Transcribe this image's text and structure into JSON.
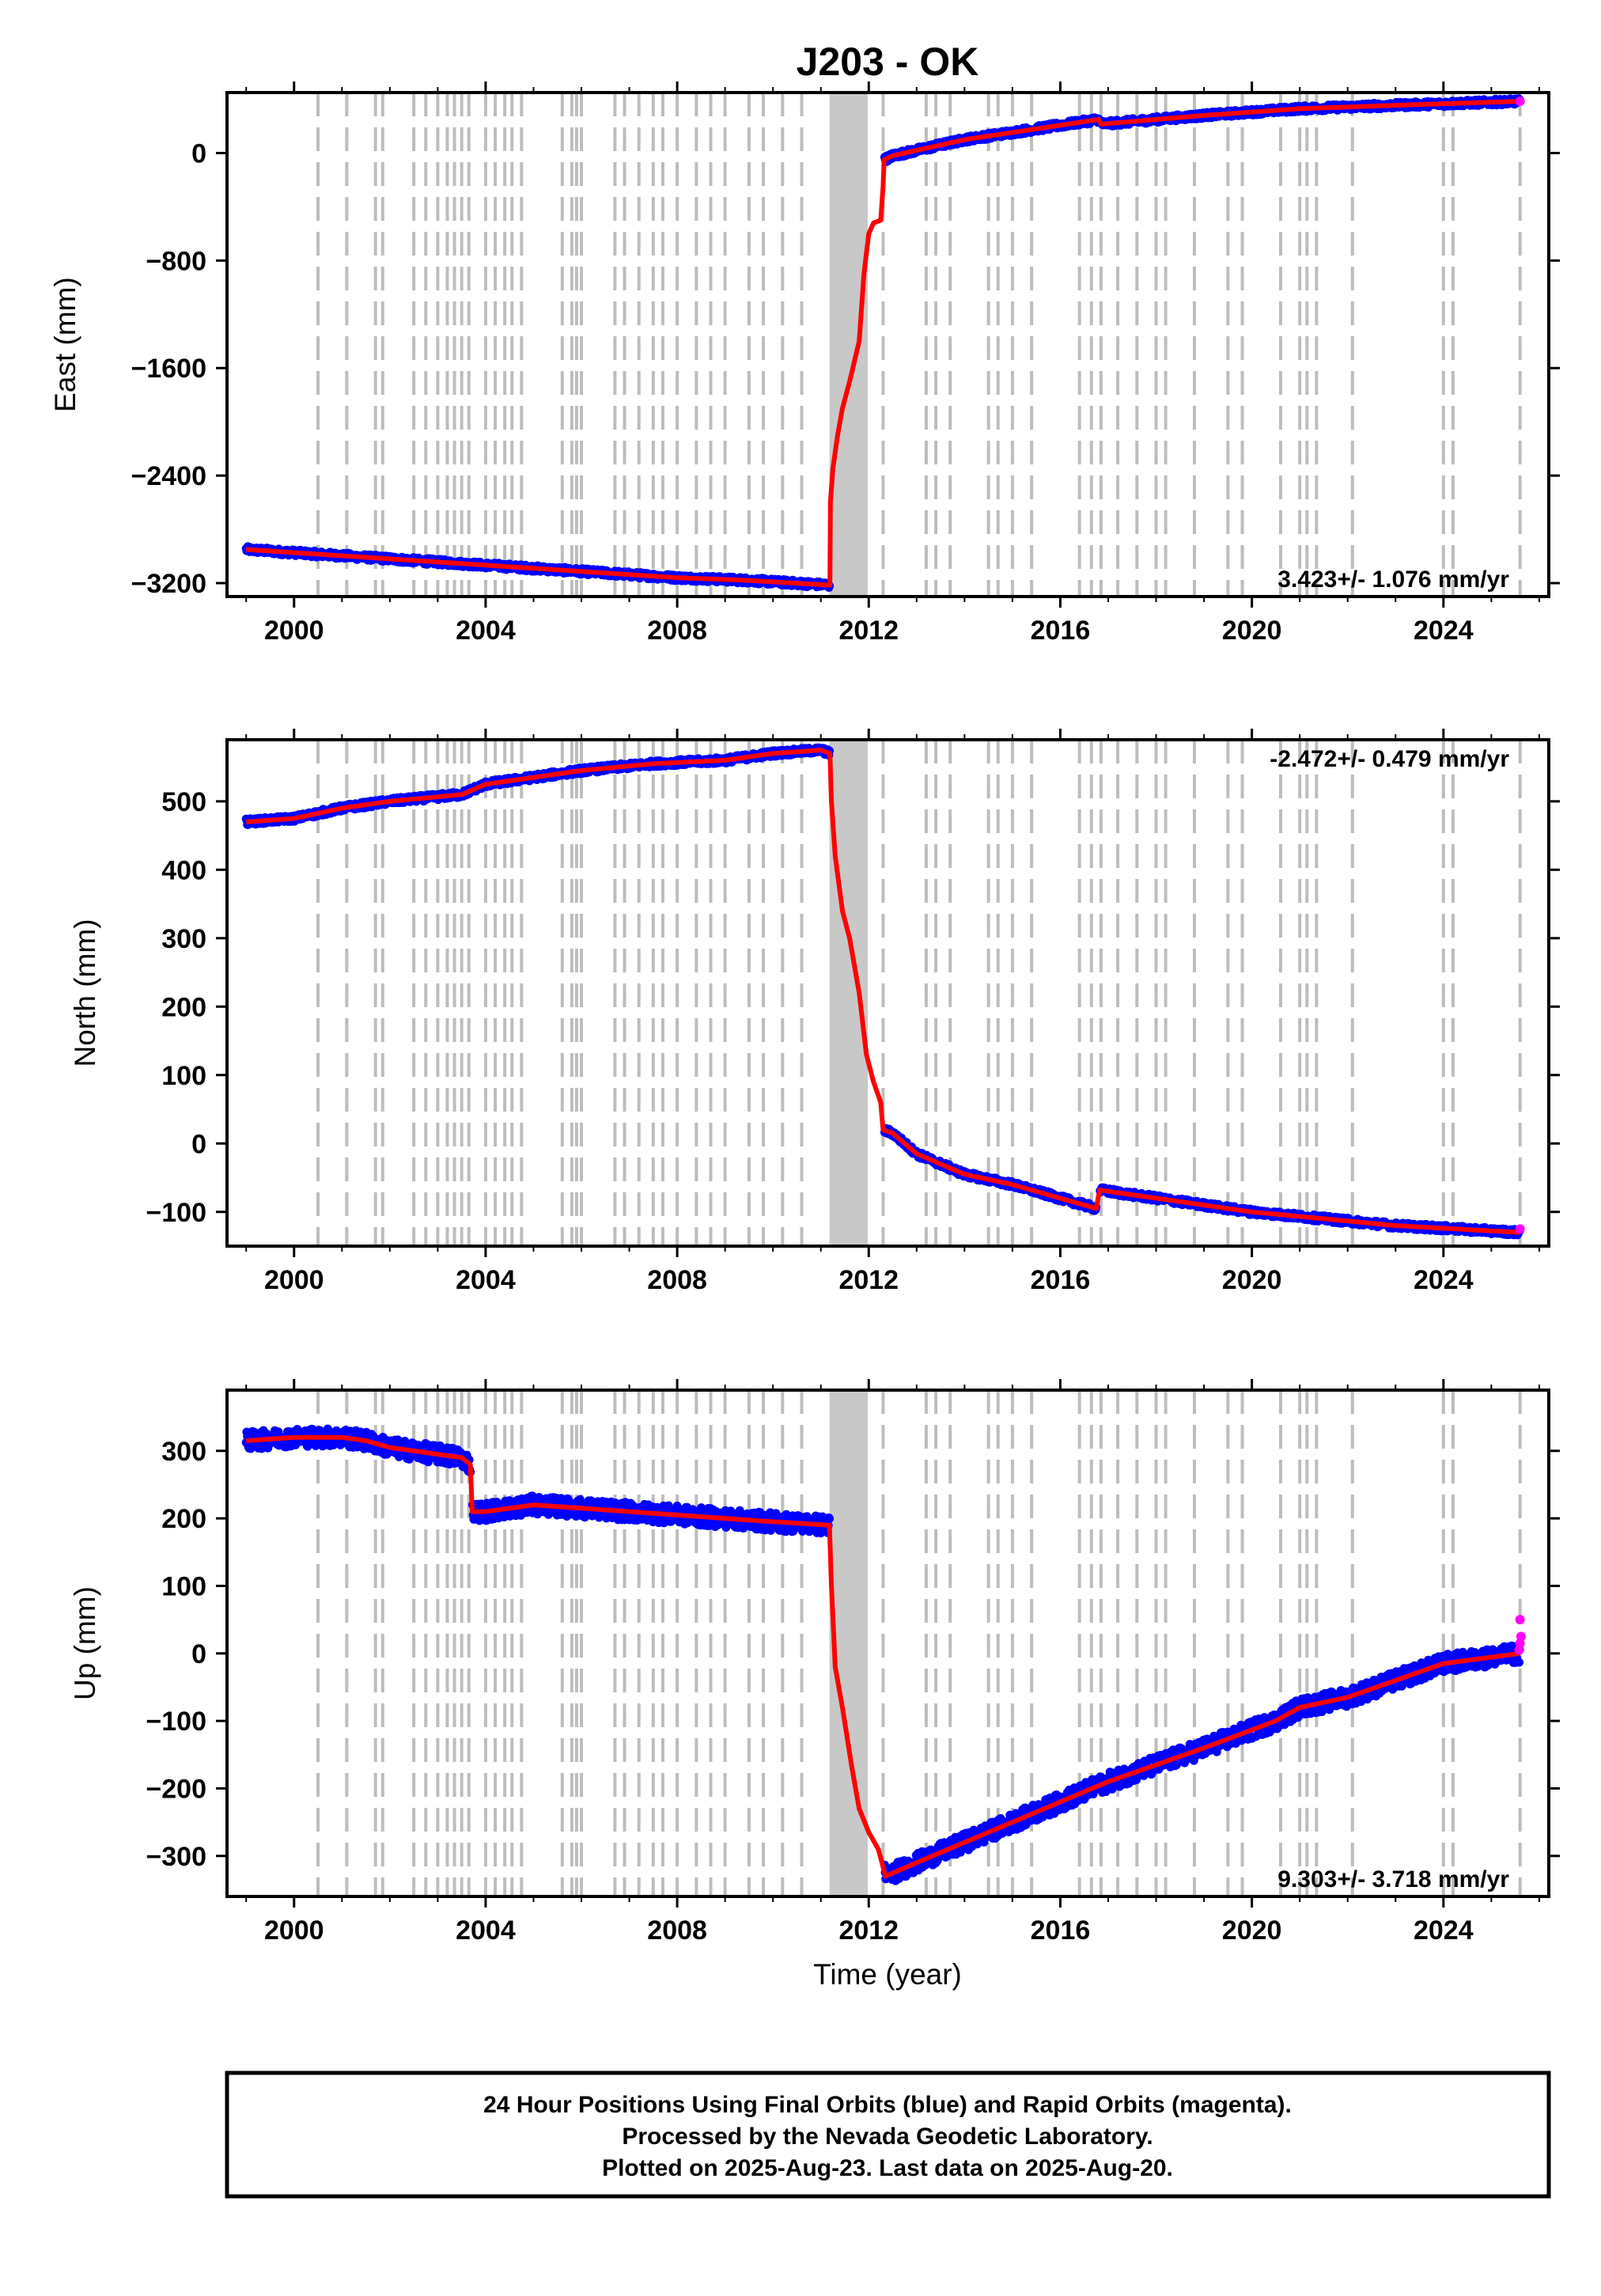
{
  "chart_data": {
    "type": "scatter",
    "title": "J203 - OK",
    "xlabel": "Time (year)",
    "xlim": [
      1998.6,
      2026.2
    ],
    "x_ticks": [
      2000,
      2004,
      2008,
      2012,
      2016,
      2020,
      2024
    ],
    "x_tick_labels": [
      "2000",
      "2004",
      "2008",
      "2012",
      "2016",
      "2020",
      "2024"
    ],
    "grid": "dashed vertical lines at equipment/earthquake events",
    "event_lines": [
      2000.5,
      2001.1,
      2001.7,
      2001.85,
      2002.5,
      2002.75,
      2003.0,
      2003.2,
      2003.35,
      2003.5,
      2003.65,
      2004.0,
      2004.2,
      2004.4,
      2004.55,
      2004.75,
      2005.6,
      2005.8,
      2005.9,
      2006.0,
      2006.7,
      2006.9,
      2007.2,
      2007.5,
      2007.7,
      2008.0,
      2008.4,
      2008.7,
      2009.0,
      2009.5,
      2009.8,
      2010.2,
      2010.6,
      2012.3,
      2013.2,
      2013.4,
      2013.7,
      2014.5,
      2014.7,
      2015.0,
      2015.4,
      2016.4,
      2016.65,
      2016.85,
      2017.2,
      2017.6,
      2018.0,
      2018.2,
      2018.8,
      2019.5,
      2019.8,
      2020.6,
      2021.0,
      2021.15,
      2021.35,
      2022.1,
      2024.0,
      2024.2,
      2025.6
    ],
    "dense_event_band": [
      2011.18,
      2011.98
    ],
    "panels": [
      {
        "ylabel": "East (mm)",
        "ylim": [
          -3300,
          450
        ],
        "y_ticks": [
          0,
          -800,
          -1600,
          -2400,
          -3200
        ],
        "y_tick_labels": [
          "0",
          "−800",
          "−1600",
          "−2400",
          "−3200"
        ],
        "rate_text": "3.423+/- 1.076 mm/yr",
        "rate_position": "bottom-right",
        "model": [
          [
            1999.0,
            -2950
          ],
          [
            2002.0,
            -3020
          ],
          [
            2005.0,
            -3090
          ],
          [
            2008.0,
            -3160
          ],
          [
            2009.5,
            -3180
          ],
          [
            2011.19,
            -3215
          ],
          [
            2011.2,
            -2600
          ],
          [
            2011.25,
            -2350
          ],
          [
            2011.35,
            -2100
          ],
          [
            2011.45,
            -1900
          ],
          [
            2011.6,
            -1700
          ],
          [
            2011.8,
            -1400
          ],
          [
            2011.9,
            -900
          ],
          [
            2012.0,
            -600
          ],
          [
            2012.1,
            -520
          ],
          [
            2012.25,
            -500
          ],
          [
            2012.3,
            -250
          ],
          [
            2012.32,
            -50
          ],
          [
            2012.5,
            -20
          ],
          [
            2014.0,
            100
          ],
          [
            2016.8,
            250
          ],
          [
            2016.85,
            215
          ],
          [
            2019.0,
            280
          ],
          [
            2021.0,
            330
          ],
          [
            2023.0,
            355
          ],
          [
            2025.6,
            385
          ]
        ],
        "rapid": [
          [
            2025.6,
            385
          ]
        ]
      },
      {
        "ylabel": "North (mm)",
        "ylim": [
          -150,
          590
        ],
        "y_ticks": [
          500,
          400,
          300,
          200,
          100,
          0,
          -100
        ],
        "y_tick_labels": [
          "500",
          "400",
          "300",
          "200",
          "100",
          "0",
          "−100"
        ],
        "rate_text": "-2.472+/- 0.479 mm/yr",
        "rate_position": "top-right",
        "model": [
          [
            1999.0,
            470
          ],
          [
            2000.0,
            475
          ],
          [
            2001.0,
            490
          ],
          [
            2002.0,
            500
          ],
          [
            2003.5,
            510
          ],
          [
            2004.0,
            525
          ],
          [
            2005.0,
            535
          ],
          [
            2006.0,
            545
          ],
          [
            2007.5,
            555
          ],
          [
            2009.0,
            560
          ],
          [
            2010.0,
            570
          ],
          [
            2011.0,
            575
          ],
          [
            2011.19,
            570
          ],
          [
            2011.22,
            500
          ],
          [
            2011.3,
            420
          ],
          [
            2011.45,
            340
          ],
          [
            2011.6,
            300
          ],
          [
            2011.8,
            220
          ],
          [
            2011.95,
            130
          ],
          [
            2012.1,
            90
          ],
          [
            2012.25,
            60
          ],
          [
            2012.3,
            20
          ],
          [
            2012.5,
            15
          ],
          [
            2013.0,
            -15
          ],
          [
            2014.0,
            -45
          ],
          [
            2015.0,
            -60
          ],
          [
            2016.0,
            -80
          ],
          [
            2016.75,
            -95
          ],
          [
            2016.82,
            -68
          ],
          [
            2017.5,
            -75
          ],
          [
            2018.5,
            -85
          ],
          [
            2020.0,
            -100
          ],
          [
            2021.5,
            -110
          ],
          [
            2023.0,
            -120
          ],
          [
            2025.6,
            -130
          ]
        ],
        "rapid": [
          [
            2025.6,
            -125
          ]
        ]
      },
      {
        "ylabel": "Up (mm)",
        "ylim": [
          -360,
          390
        ],
        "y_ticks": [
          300,
          200,
          100,
          0,
          -100,
          -200,
          -300
        ],
        "y_tick_labels": [
          "300",
          "200",
          "100",
          "0",
          "−100",
          "−200",
          "−300"
        ],
        "rate_text": "9.303+/- 3.718 mm/yr",
        "rate_position": "bottom-right",
        "model": [
          [
            1999.0,
            315
          ],
          [
            2000.0,
            320
          ],
          [
            2001.0,
            320
          ],
          [
            2001.5,
            315
          ],
          [
            2002.0,
            305
          ],
          [
            2003.0,
            295
          ],
          [
            2003.5,
            290
          ],
          [
            2003.68,
            280
          ],
          [
            2003.72,
            210
          ],
          [
            2004.0,
            210
          ],
          [
            2005.0,
            220
          ],
          [
            2006.0,
            215
          ],
          [
            2008.0,
            205
          ],
          [
            2010.0,
            195
          ],
          [
            2011.18,
            190
          ],
          [
            2011.22,
            100
          ],
          [
            2011.3,
            -20
          ],
          [
            2011.45,
            -80
          ],
          [
            2011.65,
            -170
          ],
          [
            2011.8,
            -230
          ],
          [
            2012.0,
            -265
          ],
          [
            2012.2,
            -290
          ],
          [
            2012.35,
            -330
          ],
          [
            2013.0,
            -310
          ],
          [
            2015.0,
            -250
          ],
          [
            2017.0,
            -190
          ],
          [
            2019.0,
            -140
          ],
          [
            2020.5,
            -100
          ],
          [
            2021.0,
            -80
          ],
          [
            2022.0,
            -65
          ],
          [
            2023.0,
            -40
          ],
          [
            2024.0,
            -15
          ],
          [
            2025.6,
            0
          ]
        ],
        "rapid": [
          [
            2025.6,
            50
          ],
          [
            2025.62,
            25
          ],
          [
            2025.6,
            15
          ],
          [
            2025.58,
            5
          ]
        ]
      }
    ],
    "series": [
      {
        "name": "Final Orbits (blue)",
        "color": "#0000ff"
      },
      {
        "name": "Rapid Orbits (magenta)",
        "color": "#ff00ff"
      },
      {
        "color": "#ff0000"
      }
    ],
    "footer_lines": [
      "24 Hour Positions Using Final Orbits (blue) and Rapid Orbits (magenta).",
      "Processed by the Nevada Geodetic Laboratory.",
      "Plotted on 2025-Aug-23. Last data on 2025-Aug-20."
    ]
  }
}
